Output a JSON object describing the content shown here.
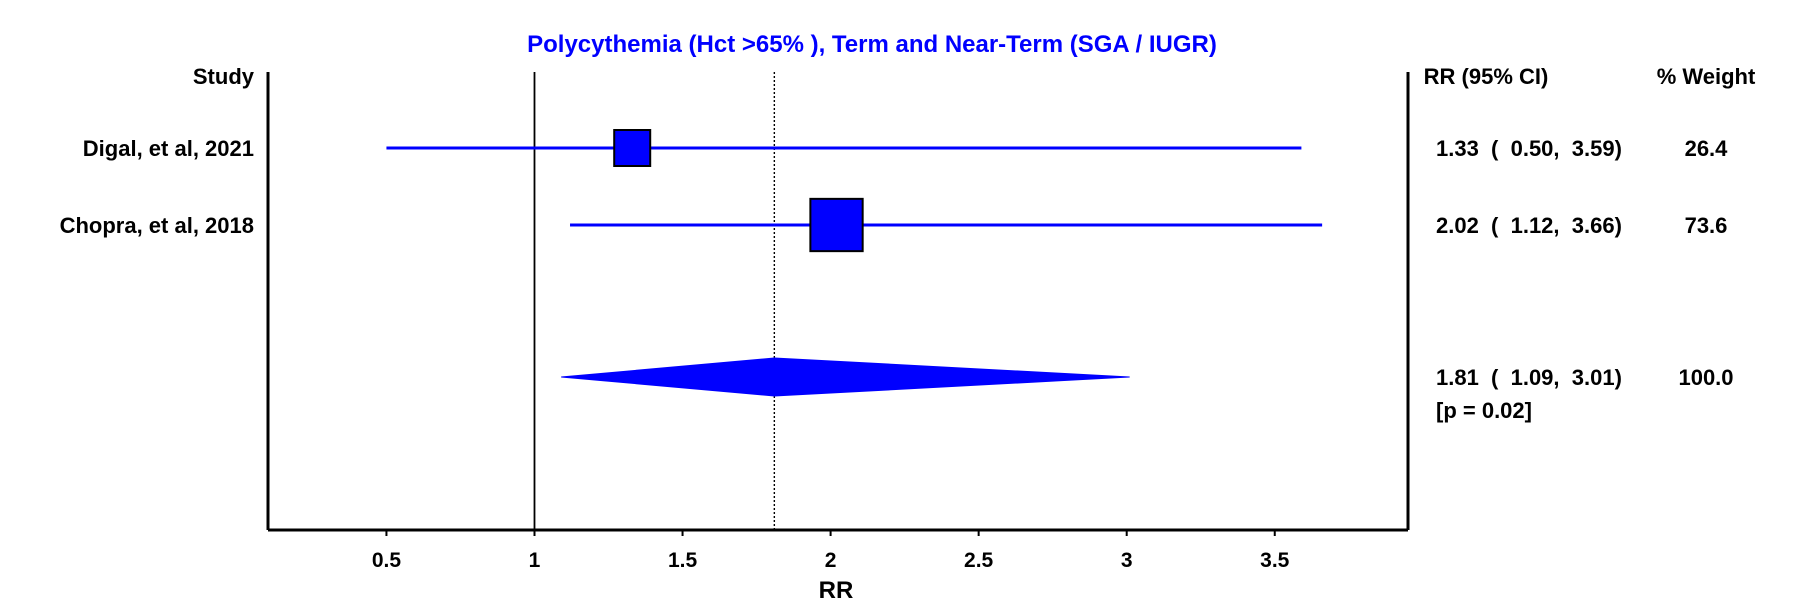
{
  "chart_data": {
    "type": "forest",
    "title": "Polycythemia (Hct >65% ), Term and Near-Term (SGA / IUGR)",
    "xlabel": "RR",
    "xlim": [
      0.1,
      3.95
    ],
    "xticks": [
      "0.5",
      "1",
      "1.5",
      "2",
      "2.5",
      "3",
      "3.5"
    ],
    "null_line": 1,
    "headers": {
      "study": "Study",
      "ci": "RR (95% CI)",
      "weight": "% Weight"
    },
    "studies": [
      {
        "name": "Digal, et al, 2021",
        "rr": 1.33,
        "lo": 0.5,
        "hi": 3.59,
        "ci_text": "1.33  (  0.50,  3.59)",
        "weight": 26.4,
        "weight_text": "26.4"
      },
      {
        "name": "Chopra, et al, 2018",
        "rr": 2.02,
        "lo": 1.12,
        "hi": 3.66,
        "ci_text": "2.02  (  1.12,  3.66)",
        "weight": 73.6,
        "weight_text": "73.6"
      }
    ],
    "pooled": {
      "rr": 1.81,
      "lo": 1.09,
      "hi": 3.01,
      "ci_text": "1.81  (  1.09,  3.01)",
      "weight_text": "100.0",
      "p_text": "[p = 0.02]"
    },
    "colors": {
      "marker": "#0000ff",
      "title": "#0000ff",
      "axis": "#000000"
    }
  }
}
